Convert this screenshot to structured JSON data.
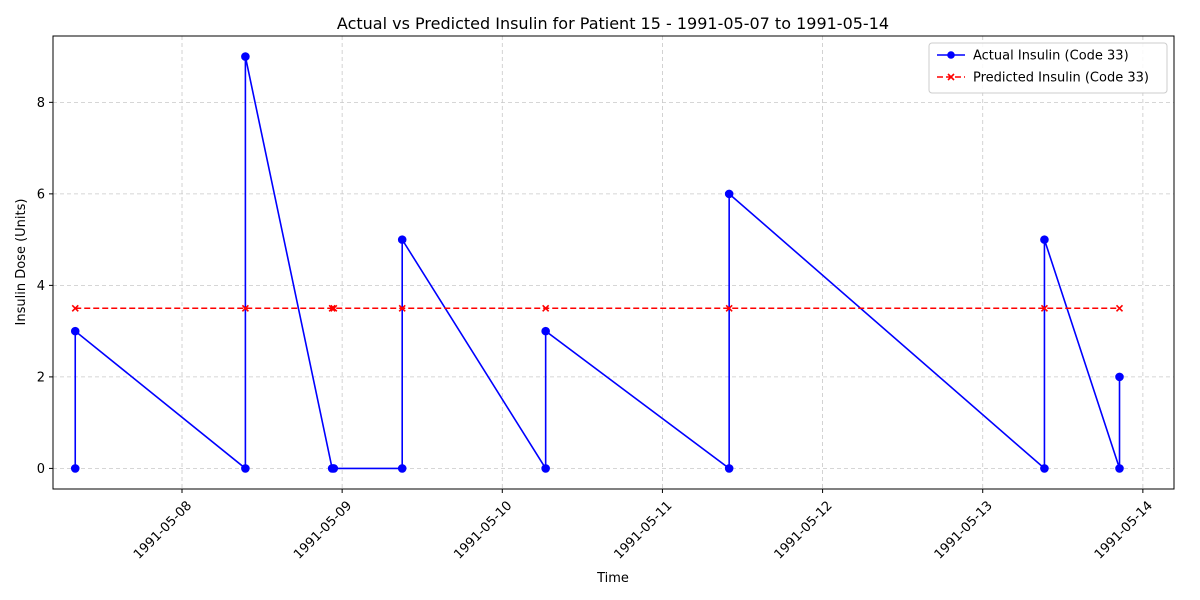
{
  "chart_data": {
    "type": "line",
    "title": "Actual vs Predicted Insulin for Patient 15 - 1991-05-07 to 1991-05-14",
    "xlabel": "Time",
    "ylabel": "Insulin Dose (Units)",
    "x_axis_type": "datetime",
    "xlim": [
      "1991-05-07T04:40",
      "1991-05-14T04:40"
    ],
    "ylim": [
      -0.45,
      9.45
    ],
    "x_ticks": [
      "1991-05-08",
      "1991-05-09",
      "1991-05-10",
      "1991-05-11",
      "1991-05-12",
      "1991-05-13",
      "1991-05-14"
    ],
    "y_ticks": [
      0,
      2,
      4,
      6,
      8
    ],
    "grid": true,
    "legend_position": "top-right",
    "series": [
      {
        "name": "Actual Insulin (Code 33)",
        "color": "#0000ff",
        "line_style": "solid",
        "marker": "circle",
        "points": [
          {
            "x": "1991-05-07T08:00",
            "y": 0
          },
          {
            "x": "1991-05-07T08:00",
            "y": 3
          },
          {
            "x": "1991-05-08T09:30",
            "y": 0
          },
          {
            "x": "1991-05-08T09:30",
            "y": 9
          },
          {
            "x": "1991-05-08T22:30",
            "y": 0
          },
          {
            "x": "1991-05-08T22:45",
            "y": 0
          },
          {
            "x": "1991-05-09T09:00",
            "y": 0
          },
          {
            "x": "1991-05-09T09:00",
            "y": 5
          },
          {
            "x": "1991-05-10T06:30",
            "y": 0
          },
          {
            "x": "1991-05-10T06:30",
            "y": 3
          },
          {
            "x": "1991-05-11T10:00",
            "y": 0
          },
          {
            "x": "1991-05-11T10:00",
            "y": 6
          },
          {
            "x": "1991-05-13T09:15",
            "y": 0
          },
          {
            "x": "1991-05-13T09:15",
            "y": 5
          },
          {
            "x": "1991-05-13T20:30",
            "y": 0
          },
          {
            "x": "1991-05-13T20:30",
            "y": 2
          }
        ]
      },
      {
        "name": "Predicted Insulin (Code 33)",
        "color": "#ff0000",
        "line_style": "dashed",
        "marker": "x",
        "points": [
          {
            "x": "1991-05-07T08:00",
            "y": 3.5
          },
          {
            "x": "1991-05-08T09:30",
            "y": 3.5
          },
          {
            "x": "1991-05-08T22:30",
            "y": 3.5
          },
          {
            "x": "1991-05-08T22:45",
            "y": 3.5
          },
          {
            "x": "1991-05-09T09:00",
            "y": 3.5
          },
          {
            "x": "1991-05-10T06:30",
            "y": 3.5
          },
          {
            "x": "1991-05-11T10:00",
            "y": 3.5
          },
          {
            "x": "1991-05-13T09:15",
            "y": 3.5
          },
          {
            "x": "1991-05-13T20:30",
            "y": 3.5
          }
        ]
      }
    ]
  }
}
